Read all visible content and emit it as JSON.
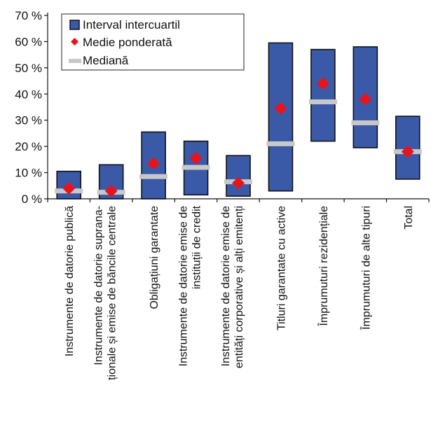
{
  "chart_data": {
    "type": "box",
    "y_unit": "%",
    "ylim": [
      0,
      70
    ],
    "y_ticks": [
      0,
      10,
      20,
      30,
      40,
      50,
      60,
      70
    ],
    "y_tick_labels": [
      "0 %",
      "10 %",
      "20 %",
      "30 %",
      "40 %",
      "50 %",
      "60 %",
      "70 %"
    ],
    "grid": false,
    "legend_position": "top-left",
    "legend": {
      "iqr": "Interval intercuartil",
      "mean": "Medie ponderată",
      "median": "Mediană"
    },
    "colors": {
      "iqr_fill": "#3a5aa8",
      "iqr_stroke": "#111111",
      "mean": "#e8141c",
      "median": "#c8c8c8"
    },
    "categories": [
      [
        "Instrumente de datorie publică"
      ],
      [
        "Instrumente de datorie suprana-",
        "ționale și emise de băncile centrale"
      ],
      [
        "Obligațiuni garantate"
      ],
      [
        "Instrumente de datorie emise de",
        "instituții de credit"
      ],
      [
        "Instrumente de datorie emise de",
        "entități corporative și alți emitenți"
      ],
      [
        "Titluri garantate cu active"
      ],
      [
        "Împrumuturi rezidențiale"
      ],
      [
        "Împrumuturi de alte tipuri"
      ],
      [
        "Total"
      ]
    ],
    "series": [
      {
        "name": "Interval intercuartil",
        "key": "iqr",
        "values": [
          [
            0,
            10.5
          ],
          [
            0,
            13
          ],
          [
            0,
            25.5
          ],
          [
            1.5,
            22
          ],
          [
            1,
            16.5
          ],
          [
            3,
            59.5
          ],
          [
            22,
            57
          ],
          [
            19.5,
            58
          ],
          [
            7.5,
            31.5
          ]
        ]
      },
      {
        "name": "Medie ponderată",
        "key": "mean",
        "values": [
          4,
          3,
          13.5,
          15.5,
          6,
          34.5,
          44,
          38,
          18
        ]
      },
      {
        "name": "Mediană",
        "key": "median",
        "values": [
          3,
          2.5,
          8.5,
          12,
          6.5,
          21,
          37,
          29,
          18
        ]
      }
    ]
  }
}
